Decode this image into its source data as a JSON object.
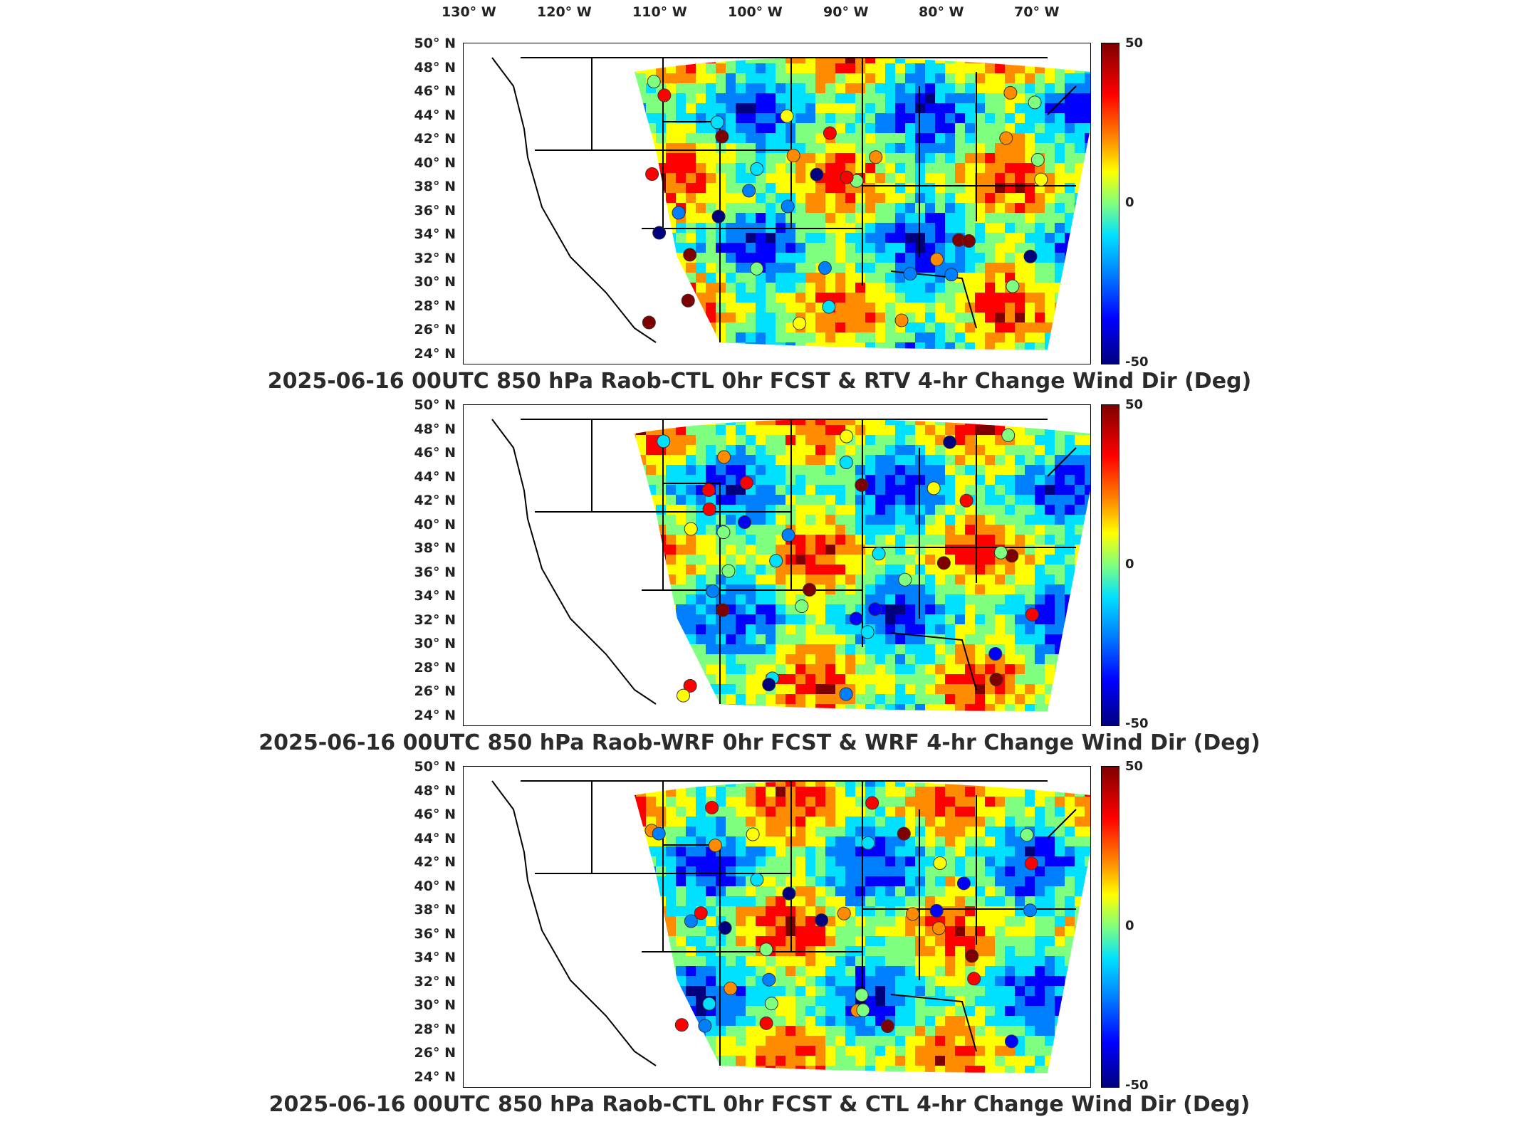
{
  "lon_labels": [
    "130° W",
    "120° W",
    "110° W",
    "100° W",
    "90° W",
    "80° W",
    "70° W"
  ],
  "lat_labels": [
    "50° N",
    "48° N",
    "46° N",
    "44° N",
    "42° N",
    "40° N",
    "38° N",
    "36° N",
    "34° N",
    "32° N",
    "30° N",
    "28° N",
    "26° N",
    "24° N"
  ],
  "colorbar": {
    "max": "50",
    "mid": "0",
    "min": "-50",
    "colors": [
      "#7f0000",
      "#ff0000",
      "#ff8c00",
      "#ffff00",
      "#7fff7f",
      "#00e0ff",
      "#0080ff",
      "#0000ff",
      "#00007f"
    ]
  },
  "panels": [
    {
      "title": "2025-06-16 00UTC 850 hPa Raob-CTL 0hr FCST & RTV 4-hr Change Wind Dir (Deg)"
    },
    {
      "title": "2025-06-16 00UTC 850 hPa Raob-WRF 0hr FCST & WRF 4-hr Change Wind Dir (Deg)"
    },
    {
      "title": "2025-06-16 00UTC 850 hPa Raob-CTL 0hr FCST & CTL 4-hr Change Wind Dir (Deg)"
    }
  ]
}
